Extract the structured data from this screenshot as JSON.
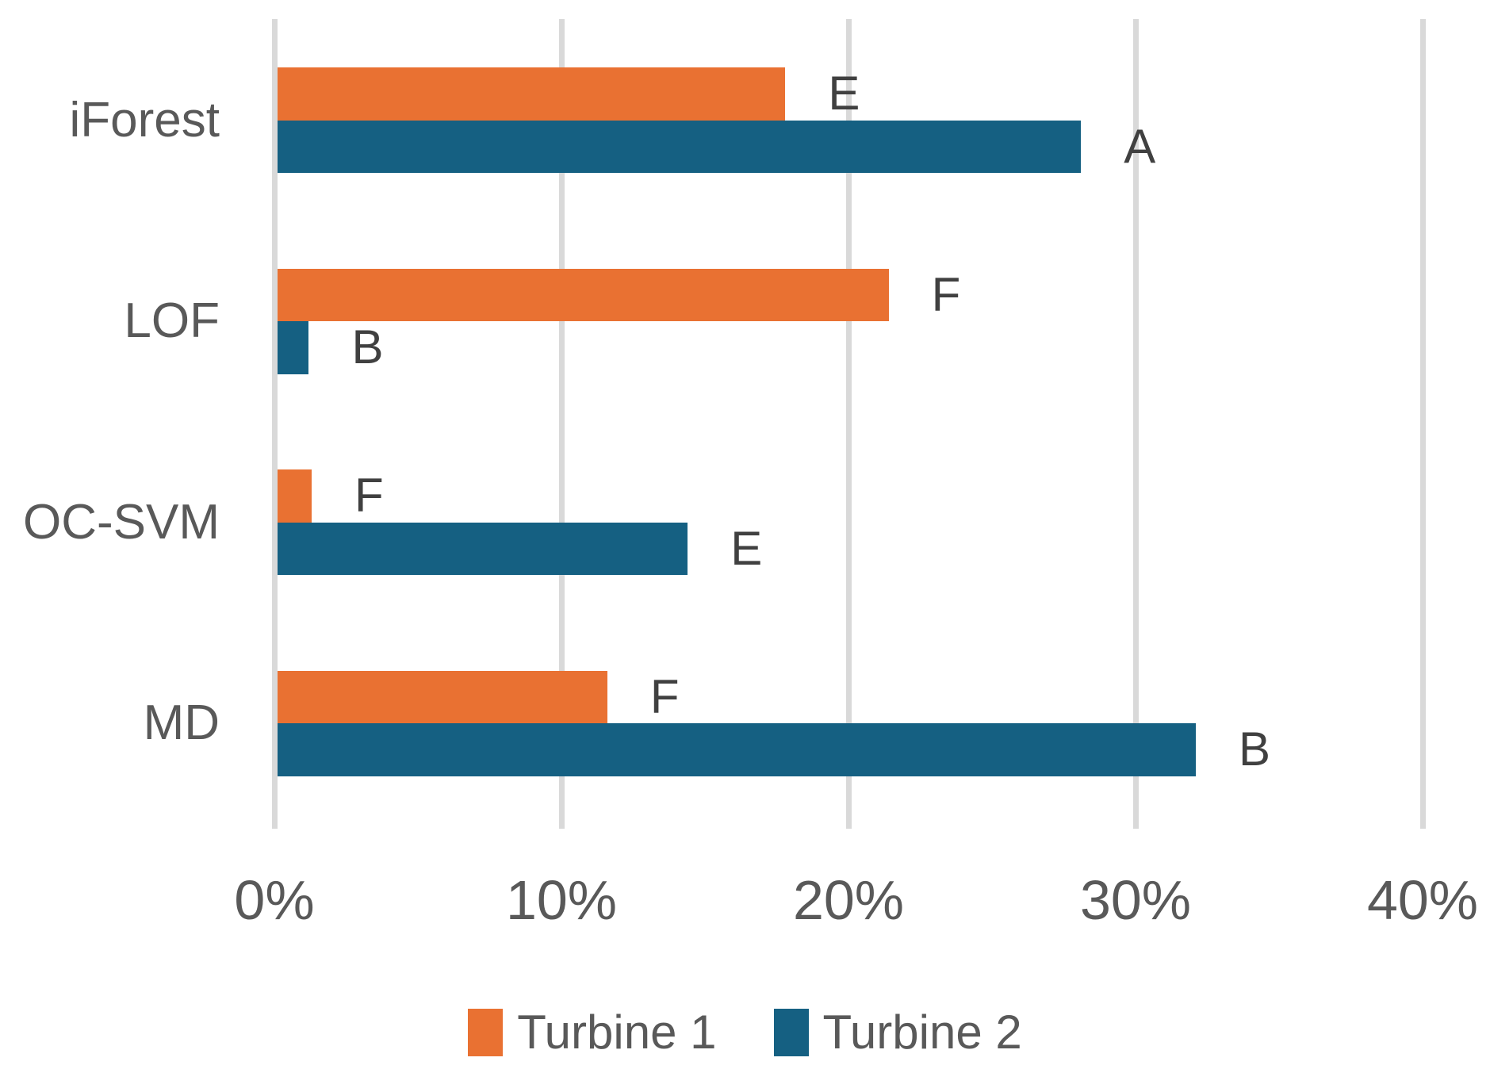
{
  "chart_data": {
    "type": "bar",
    "orientation": "horizontal",
    "title": "",
    "categories": [
      "iForest",
      "LOF",
      "OC-SVM",
      "MD"
    ],
    "series": [
      {
        "name": "Turbine 1",
        "color": "#E97132",
        "values": [
          17.8,
          21.4,
          1.3,
          11.6
        ],
        "bar_labels": [
          "E",
          "F",
          "F",
          "F"
        ]
      },
      {
        "name": "Turbine 2",
        "color": "#156082",
        "values": [
          28.1,
          1.2,
          14.4,
          32.1
        ],
        "bar_labels": [
          "A",
          "B",
          "E",
          "B"
        ]
      }
    ],
    "x_axis": {
      "min": 0,
      "max": 40,
      "tick_labels": [
        "0%",
        "10%",
        "20%",
        "30%",
        "40%"
      ],
      "tick_values": [
        0,
        10,
        20,
        30,
        40
      ]
    },
    "grid": true,
    "legend": {
      "position": "bottom",
      "entries": [
        "Turbine 1",
        "Turbine 2"
      ]
    },
    "colors": {
      "gridline": "#D9D9D9",
      "axis_text": "#595959",
      "category_text": "#595959",
      "bar_label_text": "#404040",
      "background": "#FFFFFF"
    }
  }
}
